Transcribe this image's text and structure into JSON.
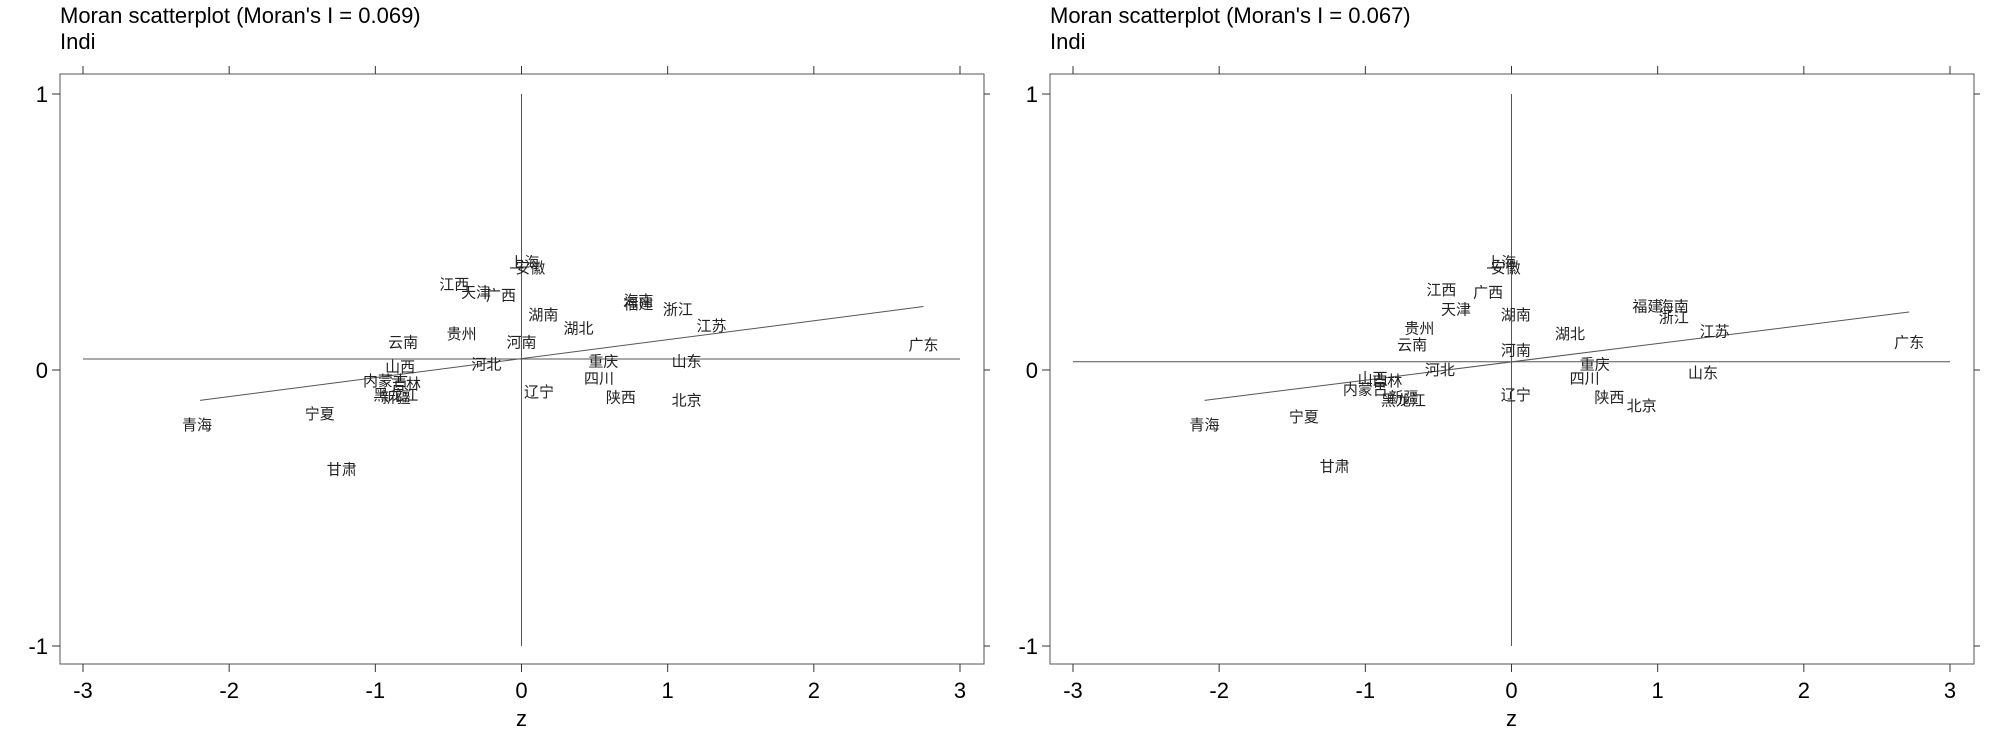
{
  "chart_data": [
    {
      "type": "scatter",
      "title": "Moran scatterplot (Moran's I = 0.069)",
      "subtitle": "Indi",
      "xlabel": "z",
      "ylabel": "",
      "xlim": [
        -3,
        3
      ],
      "ylim": [
        -1,
        1
      ],
      "xticks": [
        "-3",
        "-2",
        "-1",
        "0",
        "1",
        "2",
        "3"
      ],
      "yticks": [
        "-1",
        "0",
        "1"
      ],
      "hline_y": 0.04,
      "vline_x": 0.0,
      "fit_line": {
        "x": [
          -2.2,
          2.75
        ],
        "y": [
          -0.11,
          0.23
        ]
      },
      "points": [
        {
          "label": "上海",
          "x": 0.02,
          "y": 0.39
        },
        {
          "label": "安徽",
          "x": 0.06,
          "y": 0.37
        },
        {
          "label": "江西",
          "x": -0.46,
          "y": 0.31
        },
        {
          "label": "天津",
          "x": -0.31,
          "y": 0.28
        },
        {
          "label": "广西",
          "x": -0.14,
          "y": 0.27
        },
        {
          "label": "湖南",
          "x": 0.15,
          "y": 0.2
        },
        {
          "label": "湖北",
          "x": 0.39,
          "y": 0.15
        },
        {
          "label": "福建",
          "x": 0.8,
          "y": 0.24
        },
        {
          "label": "海南",
          "x": 0.8,
          "y": 0.25
        },
        {
          "label": "浙江",
          "x": 1.07,
          "y": 0.22
        },
        {
          "label": "江苏",
          "x": 1.3,
          "y": 0.16
        },
        {
          "label": "广东",
          "x": 2.75,
          "y": 0.09
        },
        {
          "label": "贵州",
          "x": -0.41,
          "y": 0.13
        },
        {
          "label": "云南",
          "x": -0.81,
          "y": 0.1
        },
        {
          "label": "河南",
          "x": 0.0,
          "y": 0.1
        },
        {
          "label": "河北",
          "x": -0.24,
          "y": 0.02
        },
        {
          "label": "山西",
          "x": -0.83,
          "y": 0.01
        },
        {
          "label": "重庆",
          "x": 0.56,
          "y": 0.03
        },
        {
          "label": "山东",
          "x": 1.13,
          "y": 0.03
        },
        {
          "label": "四川",
          "x": 0.53,
          "y": -0.03
        },
        {
          "label": "内蒙古",
          "x": -0.93,
          "y": -0.04
        },
        {
          "label": "吉林",
          "x": -0.79,
          "y": -0.05
        },
        {
          "label": "新疆",
          "x": -0.86,
          "y": -0.1
        },
        {
          "label": "黑龙江",
          "x": -0.86,
          "y": -0.09
        },
        {
          "label": "辽宁",
          "x": 0.12,
          "y": -0.08
        },
        {
          "label": "陕西",
          "x": 0.68,
          "y": -0.1
        },
        {
          "label": "北京",
          "x": 1.13,
          "y": -0.11
        },
        {
          "label": "宁夏",
          "x": -1.38,
          "y": -0.16
        },
        {
          "label": "青海",
          "x": -2.22,
          "y": -0.2
        },
        {
          "label": "甘肃",
          "x": -1.23,
          "y": -0.36
        }
      ]
    },
    {
      "type": "scatter",
      "title": "Moran scatterplot (Moran's I = 0.067)",
      "subtitle": "Indi",
      "xlabel": "z",
      "ylabel": "",
      "xlim": [
        -3,
        3
      ],
      "ylim": [
        -1,
        1
      ],
      "xticks": [
        "-3",
        "-2",
        "-1",
        "0",
        "1",
        "2",
        "3"
      ],
      "yticks": [
        "-1",
        "0",
        "1"
      ],
      "hline_y": 0.03,
      "vline_x": 0.0,
      "fit_line": {
        "x": [
          -2.1,
          2.72
        ],
        "y": [
          -0.11,
          0.21
        ]
      },
      "points": [
        {
          "label": "上海",
          "x": -0.07,
          "y": 0.39
        },
        {
          "label": "安徽",
          "x": -0.04,
          "y": 0.37
        },
        {
          "label": "江西",
          "x": -0.48,
          "y": 0.29
        },
        {
          "label": "广西",
          "x": -0.16,
          "y": 0.28
        },
        {
          "label": "天津",
          "x": -0.38,
          "y": 0.22
        },
        {
          "label": "湖南",
          "x": 0.03,
          "y": 0.2
        },
        {
          "label": "贵州",
          "x": -0.63,
          "y": 0.15
        },
        {
          "label": "云南",
          "x": -0.68,
          "y": 0.09
        },
        {
          "label": "湖北",
          "x": 0.4,
          "y": 0.13
        },
        {
          "label": "河南",
          "x": 0.03,
          "y": 0.07
        },
        {
          "label": "福建",
          "x": 0.93,
          "y": 0.23
        },
        {
          "label": "海南",
          "x": 1.11,
          "y": 0.23
        },
        {
          "label": "浙江",
          "x": 1.11,
          "y": 0.19
        },
        {
          "label": "江苏",
          "x": 1.39,
          "y": 0.14
        },
        {
          "label": "广东",
          "x": 2.72,
          "y": 0.1
        },
        {
          "label": "重庆",
          "x": 0.57,
          "y": 0.02
        },
        {
          "label": "山东",
          "x": 1.31,
          "y": -0.01
        },
        {
          "label": "河北",
          "x": -0.49,
          "y": 0.0
        },
        {
          "label": "四川",
          "x": 0.5,
          "y": -0.03
        },
        {
          "label": "山西",
          "x": -0.95,
          "y": -0.03
        },
        {
          "label": "吉林",
          "x": -0.85,
          "y": -0.04
        },
        {
          "label": "内蒙古",
          "x": -1.0,
          "y": -0.07
        },
        {
          "label": "辽宁",
          "x": 0.03,
          "y": -0.09
        },
        {
          "label": "陕西",
          "x": 0.67,
          "y": -0.1
        },
        {
          "label": "北京",
          "x": 0.89,
          "y": -0.13
        },
        {
          "label": "新疆",
          "x": -0.74,
          "y": -0.1
        },
        {
          "label": "黑龙江",
          "x": -0.74,
          "y": -0.11
        },
        {
          "label": "宁夏",
          "x": -1.42,
          "y": -0.17
        },
        {
          "label": "青海",
          "x": -2.1,
          "y": -0.2
        },
        {
          "label": "甘肃",
          "x": -1.21,
          "y": -0.35
        }
      ]
    }
  ]
}
